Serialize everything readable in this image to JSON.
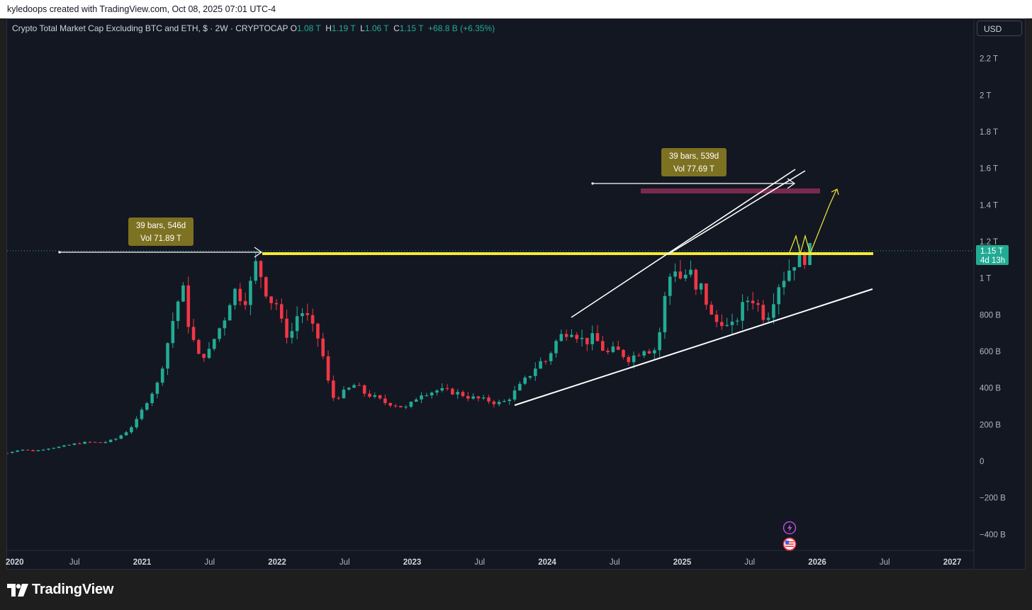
{
  "topbar": {
    "text": "kyledoops created with TradingView.com, Oct 08, 2025 07:01 UTC-4"
  },
  "legend": {
    "title": "Crypto Total Market Cap Excluding BTC and ETH, $ · 2W · CRYPTOCAP",
    "o_label": "O",
    "o_value": "1.08 T",
    "h_label": "H",
    "h_value": "1.19 T",
    "l_label": "L",
    "l_value": "1.06 T",
    "c_label": "C",
    "c_value": "1.15 T",
    "change": "+68.8 B (+6.35%)"
  },
  "currency_button": "USD",
  "price_badge": {
    "value": "1.15 T",
    "countdown": "4d 13h"
  },
  "annotations": {
    "range1": {
      "line1": "39 bars, 546d",
      "line2": "Vol 71.89 T"
    },
    "range2": {
      "line1": "39 bars, 539d",
      "line2": "Vol 77.69 T"
    }
  },
  "footer": {
    "brand": "TradingView"
  },
  "colors": {
    "up": "#22ab94",
    "down": "#f23645",
    "background": "#131722",
    "resistance": "#f5ea35",
    "target_zone": "#7a2a4e"
  },
  "chart_data": {
    "type": "candlestick",
    "title": "Crypto Total Market Cap Excluding BTC and ETH",
    "interval": "2W",
    "y_unit": "USD",
    "y_range": [
      -480,
      2350
    ],
    "y_ticks": [
      {
        "v": 2200,
        "label": "2.2 T"
      },
      {
        "v": 2000,
        "label": "2 T"
      },
      {
        "v": 1800,
        "label": "1.8 T"
      },
      {
        "v": 1600,
        "label": "1.6 T"
      },
      {
        "v": 1400,
        "label": "1.4 T"
      },
      {
        "v": 1200,
        "label": "1.2 T"
      },
      {
        "v": 1000,
        "label": "1 T"
      },
      {
        "v": 800,
        "label": "800 B"
      },
      {
        "v": 600,
        "label": "600 B"
      },
      {
        "v": 400,
        "label": "400 B"
      },
      {
        "v": 200,
        "label": "200 B"
      },
      {
        "v": 0,
        "label": "0"
      },
      {
        "v": -200,
        "label": "−200 B"
      },
      {
        "v": -400,
        "label": "−400 B"
      }
    ],
    "x_ticks": [
      {
        "t": 2020.0,
        "label": "2020",
        "bold": true
      },
      {
        "t": 2020.5,
        "label": "Jul",
        "bold": false
      },
      {
        "t": 2021.0,
        "label": "2021",
        "bold": true
      },
      {
        "t": 2021.5,
        "label": "Jul",
        "bold": false
      },
      {
        "t": 2022.0,
        "label": "2022",
        "bold": true
      },
      {
        "t": 2022.5,
        "label": "Jul",
        "bold": false
      },
      {
        "t": 2023.0,
        "label": "2023",
        "bold": true
      },
      {
        "t": 2023.5,
        "label": "Jul",
        "bold": false
      },
      {
        "t": 2024.0,
        "label": "2024",
        "bold": true
      },
      {
        "t": 2024.5,
        "label": "Jul",
        "bold": false
      },
      {
        "t": 2025.0,
        "label": "2025",
        "bold": true
      },
      {
        "t": 2025.5,
        "label": "Jul",
        "bold": false
      },
      {
        "t": 2026.0,
        "label": "2026",
        "bold": true
      },
      {
        "t": 2026.5,
        "label": "Jul",
        "bold": false
      },
      {
        "t": 2027.0,
        "label": "2027",
        "bold": true
      }
    ],
    "last_close": 1150,
    "resistance_level": 1140,
    "target_zone": [
      1460,
      1490
    ],
    "close_path": [
      [
        2020.0,
        45
      ],
      [
        2020.1,
        65
      ],
      [
        2020.2,
        55
      ],
      [
        2020.3,
        70
      ],
      [
        2020.4,
        80
      ],
      [
        2020.5,
        95
      ],
      [
        2020.6,
        105
      ],
      [
        2020.7,
        100
      ],
      [
        2020.8,
        120
      ],
      [
        2020.88,
        160
      ],
      [
        2020.95,
        210
      ],
      [
        2021.05,
        350
      ],
      [
        2021.12,
        430
      ],
      [
        2021.18,
        620
      ],
      [
        2021.25,
        840
      ],
      [
        2021.3,
        950
      ],
      [
        2021.35,
        720
      ],
      [
        2021.42,
        570
      ],
      [
        2021.5,
        600
      ],
      [
        2021.55,
        700
      ],
      [
        2021.6,
        760
      ],
      [
        2021.65,
        880
      ],
      [
        2021.7,
        950
      ],
      [
        2021.75,
        860
      ],
      [
        2021.8,
        960
      ],
      [
        2021.85,
        1100
      ],
      [
        2021.9,
        960
      ],
      [
        2021.95,
        880
      ],
      [
        2022.0,
        860
      ],
      [
        2022.05,
        700
      ],
      [
        2022.1,
        690
      ],
      [
        2022.15,
        800
      ],
      [
        2022.2,
        820
      ],
      [
        2022.25,
        740
      ],
      [
        2022.32,
        650
      ],
      [
        2022.37,
        450
      ],
      [
        2022.42,
        340
      ],
      [
        2022.5,
        380
      ],
      [
        2022.58,
        420
      ],
      [
        2022.65,
        370
      ],
      [
        2022.72,
        350
      ],
      [
        2022.8,
        320
      ],
      [
        2022.87,
        310
      ],
      [
        2022.95,
        290
      ],
      [
        2023.0,
        320
      ],
      [
        2023.06,
        370
      ],
      [
        2023.12,
        375
      ],
      [
        2023.2,
        390
      ],
      [
        2023.28,
        380
      ],
      [
        2023.35,
        370
      ],
      [
        2023.42,
        350
      ],
      [
        2023.5,
        340
      ],
      [
        2023.57,
        330
      ],
      [
        2023.63,
        315
      ],
      [
        2023.7,
        330
      ],
      [
        2023.76,
        380
      ],
      [
        2023.82,
        430
      ],
      [
        2023.88,
        480
      ],
      [
        2023.94,
        540
      ],
      [
        2024.0,
        550
      ],
      [
        2024.05,
        640
      ],
      [
        2024.12,
        700
      ],
      [
        2024.18,
        720
      ],
      [
        2024.22,
        690
      ],
      [
        2024.28,
        650
      ],
      [
        2024.35,
        680
      ],
      [
        2024.4,
        620
      ],
      [
        2024.45,
        590
      ],
      [
        2024.5,
        610
      ],
      [
        2024.55,
        590
      ],
      [
        2024.6,
        560
      ],
      [
        2024.65,
        580
      ],
      [
        2024.72,
        620
      ],
      [
        2024.78,
        600
      ],
      [
        2024.82,
        630
      ],
      [
        2024.85,
        810
      ],
      [
        2024.9,
        1000
      ],
      [
        2024.95,
        1060
      ],
      [
        2025.0,
        980
      ],
      [
        2025.05,
        1060
      ],
      [
        2025.1,
        920
      ],
      [
        2025.15,
        960
      ],
      [
        2025.2,
        800
      ],
      [
        2025.25,
        760
      ],
      [
        2025.3,
        770
      ],
      [
        2025.35,
        710
      ],
      [
        2025.42,
        800
      ],
      [
        2025.47,
        880
      ],
      [
        2025.52,
        890
      ],
      [
        2025.57,
        840
      ],
      [
        2025.62,
        770
      ],
      [
        2025.67,
        880
      ],
      [
        2025.72,
        980
      ],
      [
        2025.77,
        1020
      ],
      [
        2025.82,
        1090
      ],
      [
        2025.86,
        1100
      ],
      [
        2025.9,
        1110
      ],
      [
        2025.95,
        1150
      ]
    ]
  }
}
